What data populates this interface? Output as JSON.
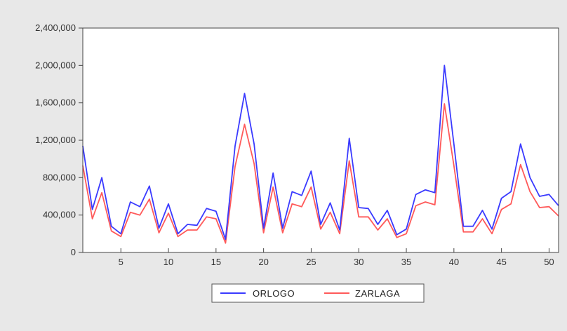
{
  "chart_data": {
    "type": "line",
    "x": [
      1,
      2,
      3,
      4,
      5,
      6,
      7,
      8,
      9,
      10,
      11,
      12,
      13,
      14,
      15,
      16,
      17,
      18,
      19,
      20,
      21,
      22,
      23,
      24,
      25,
      26,
      27,
      28,
      29,
      30,
      31,
      32,
      33,
      34,
      35,
      36,
      37,
      38,
      39,
      40,
      41,
      42,
      43,
      44,
      45,
      46,
      47,
      48,
      49,
      50,
      51
    ],
    "series": [
      {
        "name": "ORLOGO",
        "color": "#3a3aff",
        "values": [
          1140000,
          460000,
          800000,
          280000,
          200000,
          540000,
          490000,
          710000,
          260000,
          520000,
          200000,
          300000,
          290000,
          470000,
          440000,
          140000,
          1140000,
          1700000,
          1160000,
          260000,
          850000,
          260000,
          650000,
          610000,
          870000,
          300000,
          530000,
          240000,
          1220000,
          480000,
          470000,
          300000,
          450000,
          190000,
          250000,
          620000,
          670000,
          640000,
          2000000,
          1160000,
          280000,
          280000,
          450000,
          250000,
          580000,
          650000,
          1160000,
          800000,
          600000,
          620000,
          500000
        ]
      },
      {
        "name": "ZARLAGA",
        "color": "#ff5a5a",
        "values": [
          930000,
          360000,
          640000,
          230000,
          170000,
          430000,
          400000,
          570000,
          210000,
          420000,
          170000,
          240000,
          240000,
          380000,
          360000,
          100000,
          920000,
          1370000,
          950000,
          210000,
          700000,
          210000,
          520000,
          490000,
          700000,
          250000,
          430000,
          200000,
          980000,
          380000,
          380000,
          240000,
          360000,
          160000,
          200000,
          500000,
          540000,
          510000,
          1590000,
          930000,
          220000,
          220000,
          360000,
          200000,
          460000,
          520000,
          940000,
          650000,
          480000,
          490000,
          390000
        ]
      }
    ],
    "ylim": [
      0,
      2400000
    ],
    "yticks": [
      "0",
      "400,000",
      "800,000",
      "1,200,000",
      "1,600,000",
      "2,000,000",
      "2,400,000"
    ],
    "xticks": [
      "5",
      "10",
      "15",
      "20",
      "25",
      "30",
      "35",
      "40",
      "45",
      "50"
    ],
    "grid": false,
    "legend": "bottom-center"
  }
}
